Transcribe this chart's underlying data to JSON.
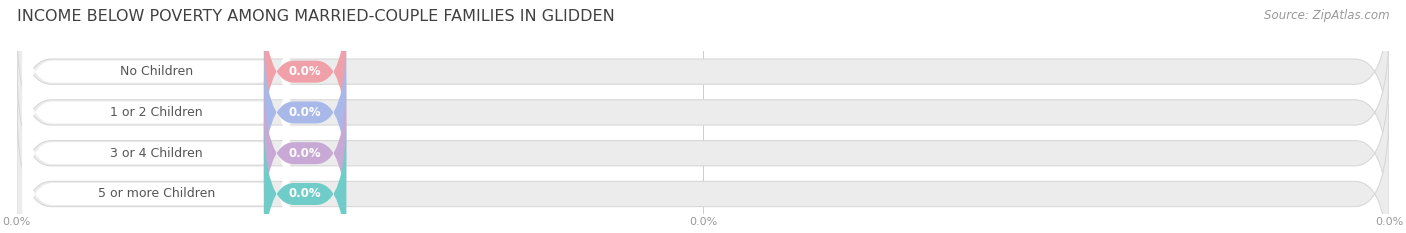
{
  "title": "INCOME BELOW POVERTY AMONG MARRIED-COUPLE FAMILIES IN GLIDDEN",
  "source": "Source: ZipAtlas.com",
  "categories": [
    "No Children",
    "1 or 2 Children",
    "3 or 4 Children",
    "5 or more Children"
  ],
  "values": [
    0.0,
    0.0,
    0.0,
    0.0
  ],
  "bar_colors": [
    "#f0a0a8",
    "#a8b8e8",
    "#c8a8d4",
    "#70ccc8"
  ],
  "background_color": "#ffffff",
  "bar_bg_color": "#ececec",
  "bar_bg_border_color": "#d8d8d8",
  "white_pill_color": "#ffffff",
  "title_fontsize": 11.5,
  "source_fontsize": 8.5,
  "cat_fontsize": 9,
  "val_fontsize": 8.5,
  "figsize": [
    14.06,
    2.33
  ],
  "dpi": 100,
  "tick_labels": [
    "0.0%",
    "0.0%",
    "0.0%"
  ],
  "x_axis_color": "#aaaaaa",
  "grid_color": "#cccccc",
  "n_rows": 4
}
